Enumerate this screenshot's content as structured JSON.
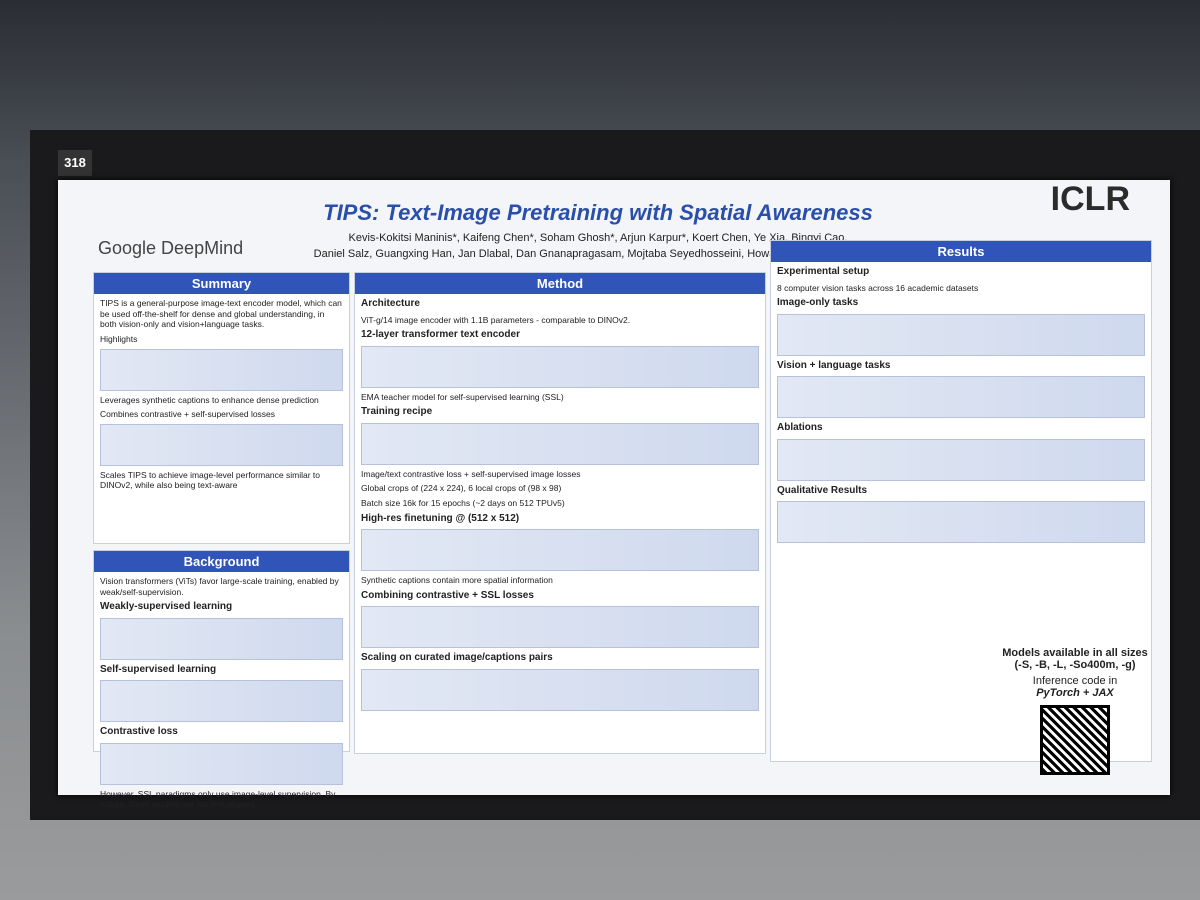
{
  "board_number": "318",
  "poster": {
    "affiliation": "Google DeepMind",
    "title": "TIPS: Text-Image Pretraining with Spatial Awareness",
    "authors": [
      "Kevis-Kokitsi Maninis*, Kaifeng Chen*, Soham Ghosh*, Arjun Karpur*, Koert Chen, Ye Xia, Bingyi Cao,",
      "Daniel Salz, Guangxing Han, Jan Dlabal, Dan Gnanapragasam, Mojtaba Seyedhosseini, Howard Zhou, Andre Araujo"
    ],
    "venue": "ICLR"
  },
  "sections": [
    {
      "heading": "Summary",
      "lines": [
        "TIPS is a general-purpose image-text encoder model, which can be used off-the-shelf for dense and global understanding, in both vision-only and vision+language tasks.",
        "Highlights",
        "Leverages synthetic captions to enhance dense prediction",
        "Combines contrastive + self-supervised losses",
        "Scales TIPS to achieve image-level performance similar to DINOv2, while also being text-aware"
      ]
    },
    {
      "heading": "Background",
      "lines": [
        "Vision transformers (ViTs) favor large-scale training, enabled by weak/self-supervision.",
        "Weakly-supervised learning",
        "Self-supervised learning",
        "Contrastive loss",
        "However, SSL paradigms only use image-level supervision. By nature, these models are not text-aligned."
      ]
    },
    {
      "heading": "Method",
      "lines": [
        "Architecture",
        "ViT-g/14 image encoder with 1.1B parameters - comparable to DINOv2.",
        "12-layer transformer text encoder",
        "EMA teacher model for self-supervised learning (SSL)",
        "Training recipe",
        "Image/text contrastive loss + self-supervised image losses",
        "Global crops of (224 x 224), 6 local crops of (98 x 98)",
        "Batch size 16k for 15 epochs (~2 days on 512 TPUv5)",
        "High-res finetuning @ (512 x 512)",
        "Synthetic captions contain more spatial information",
        "Combining contrastive + SSL losses",
        "Scaling on curated image/captions pairs"
      ]
    },
    {
      "heading": "Results",
      "lines": [
        "Experimental setup",
        "8 computer vision tasks across 16 academic datasets",
        "Image-only tasks",
        "Vision + language tasks",
        "Ablations",
        "Qualitative Results"
      ]
    }
  ],
  "footer": {
    "models": "Models available in all sizes",
    "sizes": "(-S, -B, -L, -So400m, -g)",
    "inference": "Inference code in",
    "frameworks": "PyTorch + JAX"
  }
}
